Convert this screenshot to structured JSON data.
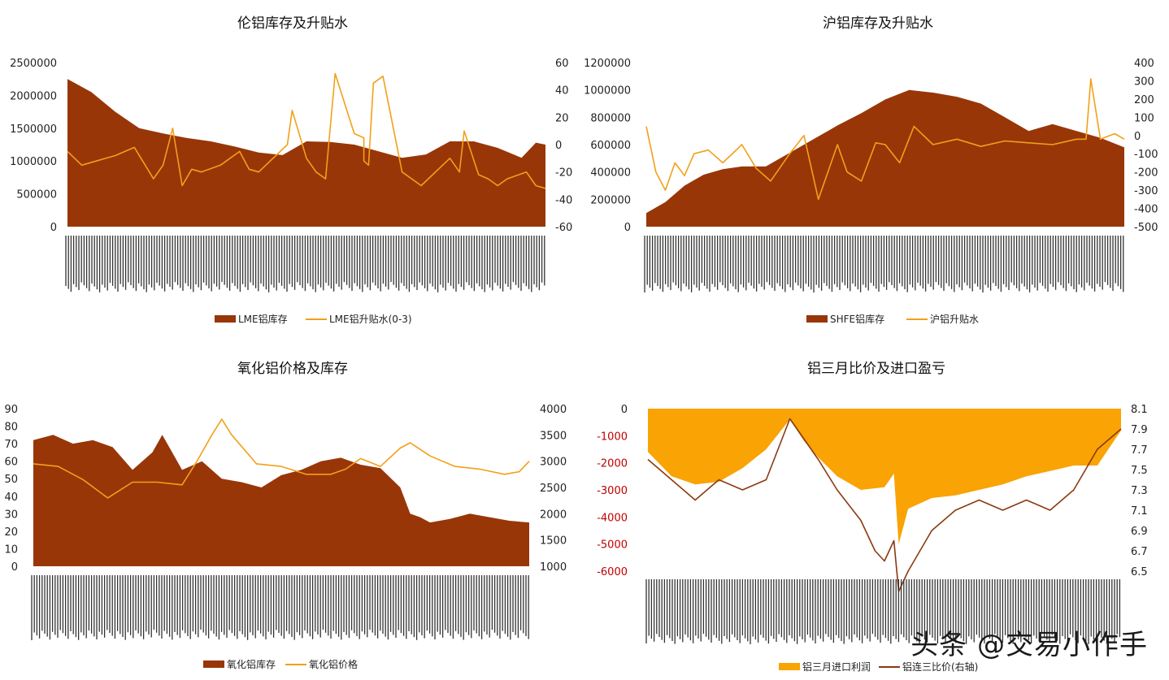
{
  "watermark": "头条 @交易小作手",
  "colors": {
    "brown_fill": "#983608",
    "orange_line": "#f2a01a",
    "orange_fill": "#f9a305",
    "brown_line": "#8a3a10",
    "neg_red": "#c00000"
  },
  "chart_data": [
    {
      "type": "area",
      "title": "伦铝库存及升贴水",
      "y_left": {
        "ticks": [
          "2500000",
          "2000000",
          "1500000",
          "1000000",
          "500000",
          "0"
        ],
        "lim": [
          0,
          2500000
        ]
      },
      "y_right": {
        "ticks": [
          "60",
          "40",
          "20",
          "0",
          "-20",
          "-40",
          "-60"
        ],
        "lim": [
          -60,
          60
        ]
      },
      "series": [
        {
          "name": "LME铝库存",
          "kind": "area",
          "axis": "left",
          "x": [
            0,
            0.05,
            0.1,
            0.15,
            0.2,
            0.25,
            0.3,
            0.35,
            0.4,
            0.45,
            0.5,
            0.55,
            0.6,
            0.65,
            0.7,
            0.75,
            0.8,
            0.85,
            0.9,
            0.95,
            0.98,
            1
          ],
          "values": [
            2250000,
            2050000,
            1750000,
            1500000,
            1420000,
            1350000,
            1300000,
            1220000,
            1130000,
            1090000,
            1300000,
            1290000,
            1250000,
            1150000,
            1050000,
            1100000,
            1300000,
            1300000,
            1200000,
            1050000,
            1280000,
            1250000
          ]
        },
        {
          "name": "LME铝升贴水(0-3)",
          "kind": "line",
          "axis": "right",
          "x": [
            0,
            0.03,
            0.06,
            0.1,
            0.14,
            0.18,
            0.2,
            0.22,
            0.24,
            0.26,
            0.28,
            0.32,
            0.36,
            0.38,
            0.4,
            0.46,
            0.47,
            0.5,
            0.52,
            0.54,
            0.56,
            0.6,
            0.62,
            0.62,
            0.63,
            0.64,
            0.66,
            0.7,
            0.72,
            0.74,
            0.8,
            0.82,
            0.83,
            0.86,
            0.88,
            0.9,
            0.92,
            0.96,
            0.98,
            1
          ],
          "values": [
            -5,
            -15,
            -12,
            -8,
            -2,
            -25,
            -15,
            12,
            -30,
            -18,
            -20,
            -15,
            -5,
            -18,
            -20,
            0,
            25,
            -10,
            -20,
            -25,
            52,
            8,
            5,
            -12,
            -15,
            45,
            50,
            -20,
            -25,
            -30,
            -10,
            -20,
            10,
            -22,
            -25,
            -30,
            -25,
            -20,
            -30,
            -32
          ]
        }
      ],
      "x_labels_note": "",
      "legend": [
        "LME铝库存",
        "LME铝升贴水(0-3)"
      ]
    },
    {
      "type": "area",
      "title": "沪铝库存及升贴水",
      "y_left": {
        "ticks": [
          "1200000",
          "1000000",
          "800000",
          "600000",
          "400000",
          "200000",
          "0"
        ],
        "lim": [
          0,
          1200000
        ]
      },
      "y_right": {
        "ticks": [
          "400",
          "300",
          "200",
          "100",
          "0",
          "-100",
          "-200",
          "-300",
          "-400",
          "-500"
        ],
        "lim": [
          -500,
          400
        ]
      },
      "series": [
        {
          "name": "SHFE铝库存",
          "kind": "area",
          "axis": "left",
          "x": [
            0,
            0.04,
            0.08,
            0.12,
            0.16,
            0.2,
            0.25,
            0.3,
            0.35,
            0.4,
            0.45,
            0.5,
            0.55,
            0.6,
            0.65,
            0.7,
            0.75,
            0.8,
            0.85,
            0.9,
            0.95,
            1
          ],
          "values": [
            100000,
            180000,
            300000,
            380000,
            420000,
            440000,
            440000,
            540000,
            640000,
            740000,
            830000,
            930000,
            1000000,
            980000,
            950000,
            900000,
            800000,
            700000,
            750000,
            700000,
            650000,
            580000
          ]
        },
        {
          "name": "沪铝升贴水",
          "kind": "line",
          "axis": "right",
          "x": [
            0,
            0.02,
            0.04,
            0.06,
            0.08,
            0.1,
            0.13,
            0.16,
            0.2,
            0.23,
            0.26,
            0.3,
            0.33,
            0.36,
            0.4,
            0.42,
            0.45,
            0.48,
            0.5,
            0.53,
            0.56,
            0.6,
            0.65,
            0.7,
            0.75,
            0.8,
            0.85,
            0.9,
            0.92,
            0.93,
            0.95,
            0.98,
            1
          ],
          "values": [
            50,
            -200,
            -300,
            -150,
            -220,
            -100,
            -80,
            -150,
            -50,
            -180,
            -250,
            -100,
            0,
            -350,
            -50,
            -200,
            -250,
            -40,
            -50,
            -150,
            50,
            -50,
            -20,
            -60,
            -30,
            -40,
            -50,
            -20,
            -20,
            310,
            -20,
            10,
            -20
          ]
        }
      ],
      "legend": [
        "SHFE铝库存",
        "沪铝升贴水"
      ]
    },
    {
      "type": "area",
      "title": "氧化铝价格及库存",
      "y_left": {
        "ticks": [
          "90",
          "80",
          "70",
          "60",
          "50",
          "40",
          "30",
          "20",
          "10",
          "0"
        ],
        "lim": [
          0,
          90
        ]
      },
      "y_right": {
        "ticks": [
          "4000",
          "3500",
          "3000",
          "2500",
          "2000",
          "1500",
          "1000"
        ],
        "lim": [
          1000,
          4000
        ]
      },
      "series": [
        {
          "name": "氧化铝库存",
          "kind": "area",
          "axis": "left",
          "x": [
            0,
            0.04,
            0.08,
            0.12,
            0.16,
            0.2,
            0.24,
            0.26,
            0.3,
            0.34,
            0.38,
            0.42,
            0.46,
            0.5,
            0.54,
            0.58,
            0.62,
            0.66,
            0.7,
            0.74,
            0.76,
            0.78,
            0.8,
            0.84,
            0.88,
            0.92,
            0.96,
            1
          ],
          "values": [
            72,
            75,
            70,
            72,
            68,
            55,
            65,
            75,
            55,
            60,
            50,
            48,
            45,
            52,
            55,
            60,
            62,
            58,
            56,
            45,
            30,
            28,
            25,
            27,
            30,
            28,
            26,
            25
          ]
        },
        {
          "name": "氧化铝价格",
          "kind": "line",
          "axis": "right",
          "x": [
            0,
            0.05,
            0.1,
            0.15,
            0.2,
            0.25,
            0.3,
            0.33,
            0.36,
            0.38,
            0.4,
            0.45,
            0.5,
            0.55,
            0.6,
            0.63,
            0.66,
            0.7,
            0.74,
            0.76,
            0.8,
            0.85,
            0.9,
            0.95,
            0.98,
            1
          ],
          "values": [
            2950,
            2900,
            2650,
            2300,
            2600,
            2600,
            2550,
            3000,
            3500,
            3800,
            3500,
            2950,
            2900,
            2750,
            2750,
            2850,
            3050,
            2900,
            3250,
            3350,
            3100,
            2900,
            2850,
            2750,
            2800,
            3000
          ]
        }
      ],
      "legend": [
        "氧化铝库存",
        "氧化铝价格"
      ]
    },
    {
      "type": "area",
      "title": "铝三月比价及进口盈亏",
      "y_left": {
        "ticks": [
          "0",
          "-1000",
          "-2000",
          "-3000",
          "-4000",
          "-5000",
          "-6000"
        ],
        "lim": [
          -6000,
          0
        ]
      },
      "y_right": {
        "ticks": [
          "8.1",
          "7.9",
          "7.7",
          "7.5",
          "7.3",
          "7.1",
          "6.9",
          "6.7",
          "6.5"
        ],
        "lim": [
          6.5,
          8.1
        ]
      },
      "series": [
        {
          "name": "铝三月进口利润",
          "kind": "area",
          "axis": "left",
          "x": [
            0,
            0.05,
            0.1,
            0.15,
            0.2,
            0.25,
            0.3,
            0.33,
            0.36,
            0.4,
            0.45,
            0.5,
            0.52,
            0.53,
            0.55,
            0.6,
            0.65,
            0.7,
            0.75,
            0.8,
            0.85,
            0.9,
            0.95,
            1
          ],
          "values": [
            -1600,
            -2500,
            -2800,
            -2700,
            -2200,
            -1500,
            -400,
            -1200,
            -1800,
            -2500,
            -3000,
            -2900,
            -2400,
            -5000,
            -3700,
            -3300,
            -3200,
            -3000,
            -2800,
            -2500,
            -2300,
            -2100,
            -2100,
            -800
          ]
        },
        {
          "name": "铝连三比价(右轴)",
          "kind": "line",
          "axis": "right",
          "x": [
            0,
            0.05,
            0.1,
            0.15,
            0.2,
            0.25,
            0.3,
            0.33,
            0.36,
            0.4,
            0.45,
            0.48,
            0.5,
            0.52,
            0.53,
            0.55,
            0.6,
            0.65,
            0.7,
            0.75,
            0.8,
            0.85,
            0.9,
            0.95,
            1
          ],
          "values": [
            7.6,
            7.4,
            7.2,
            7.4,
            7.3,
            7.4,
            8.0,
            7.8,
            7.6,
            7.3,
            7.0,
            6.7,
            6.6,
            6.8,
            6.3,
            6.5,
            6.9,
            7.1,
            7.2,
            7.1,
            7.2,
            7.1,
            7.3,
            7.7,
            7.9
          ]
        }
      ],
      "legend": [
        "铝三月进口利润",
        "铝连三比价(右轴)"
      ]
    }
  ]
}
